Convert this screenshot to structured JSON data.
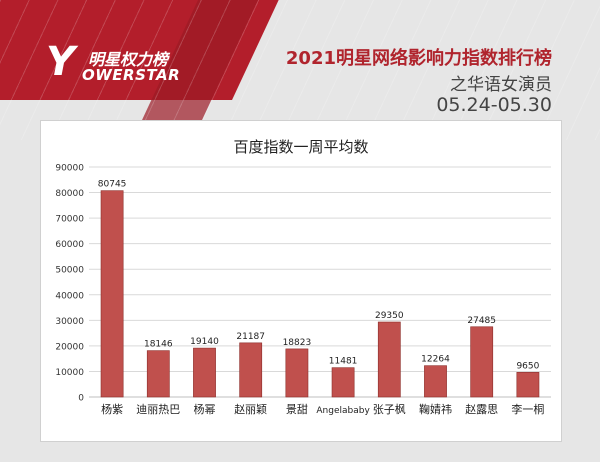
{
  "brand": {
    "logo_mark": "Y",
    "logo_cn": "明星权力榜",
    "logo_en": "OWERSTAR"
  },
  "header": {
    "title": "2021明星网络影响力指数排行榜",
    "subtitle": "之华语女演员",
    "date_range": "05.24-05.30"
  },
  "chart_data": {
    "type": "bar",
    "title": "百度指数一周平均数",
    "xlabel": "",
    "ylabel": "",
    "categories": [
      "杨紫",
      "迪丽热巴",
      "杨幂",
      "赵丽颖",
      "景甜",
      "Angelababy",
      "张子枫",
      "鞠婧祎",
      "赵露思",
      "李一桐"
    ],
    "values": [
      80745,
      18146,
      19140,
      21187,
      18823,
      11481,
      29350,
      12264,
      27485,
      9650
    ],
    "ylim": [
      0,
      90000
    ],
    "yticks": [
      0,
      10000,
      20000,
      30000,
      40000,
      50000,
      60000,
      70000,
      80000,
      90000
    ],
    "grid": true,
    "legend": "none",
    "bar_color": "#c0504d",
    "bar_edge_color": "#8c2d2a"
  },
  "colors": {
    "accent": "#b0242d",
    "header_red": "#b31e2b"
  }
}
